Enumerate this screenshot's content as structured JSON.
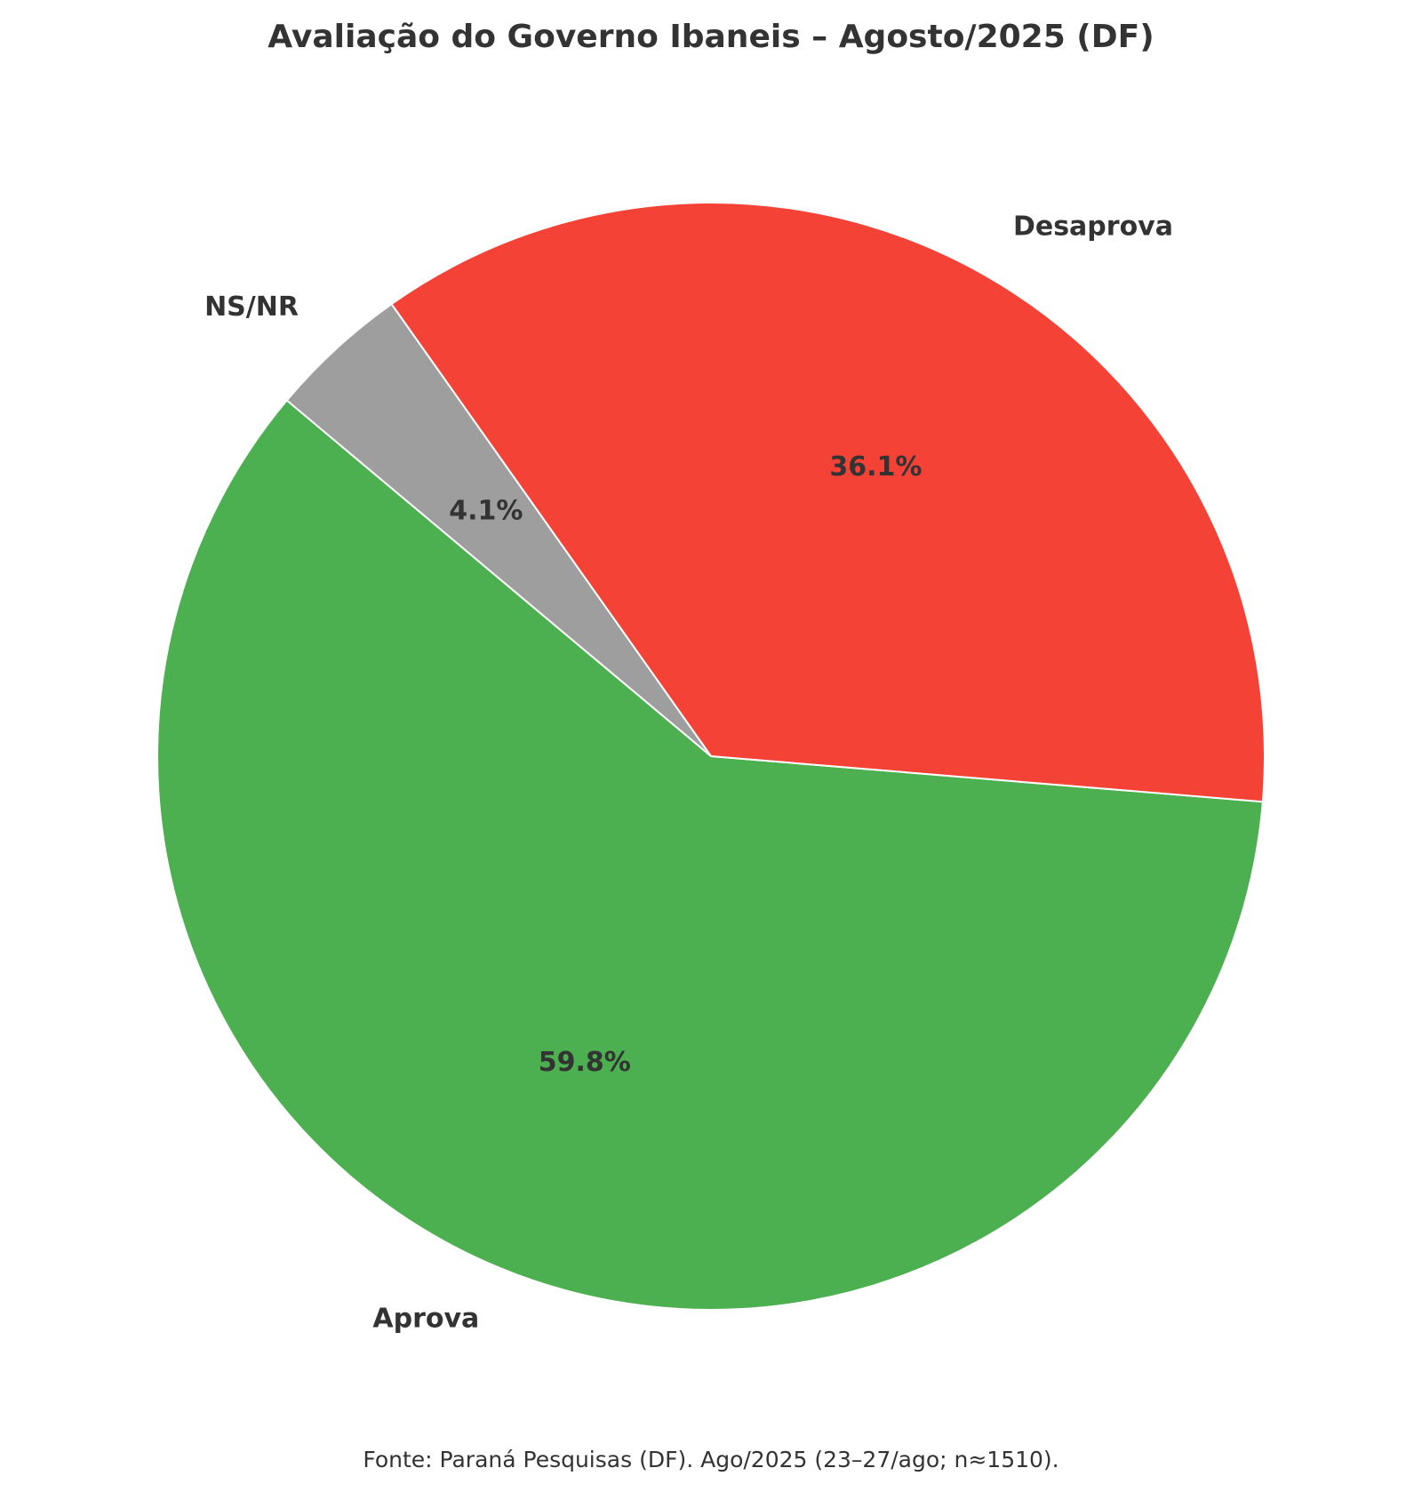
{
  "chart_data": {
    "type": "pie",
    "title": "Avaliação do Governo Ibaneis – Agosto/2025 (DF)",
    "categories": [
      "Aprova",
      "Desaprova",
      "NS/NR"
    ],
    "values": [
      59.8,
      36.1,
      4.1
    ],
    "value_labels": [
      "59.8%",
      "36.1%",
      "4.1%"
    ],
    "colors": [
      "#4caf50",
      "#f44336",
      "#9e9e9e"
    ],
    "note": "Fonte: Paraná Pesquisas (DF). Ago/2025 (23–27/ago; n≈1510)."
  }
}
